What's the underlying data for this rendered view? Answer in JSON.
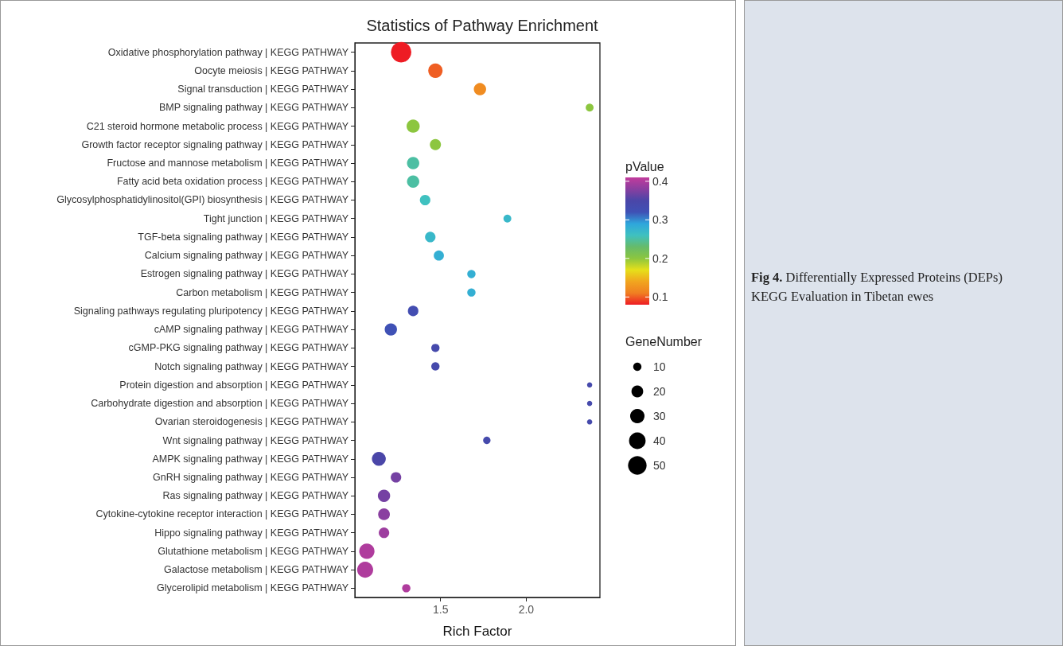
{
  "chart_data": {
    "type": "bubble",
    "title": "Statistics of Pathway Enrichment",
    "xlabel": "Rich Factor",
    "clabel": "pValue",
    "legend_title": "GeneNumber",
    "categories": [
      "Oxidative phosphorylation pathway | KEGG PATHWAY",
      "Oocyte meiosis | KEGG PATHWAY",
      "Signal transduction | KEGG PATHWAY",
      "BMP signaling pathway | KEGG PATHWAY",
      "C21 steroid hormone metabolic process | KEGG PATHWAY",
      "Growth factor receptor signaling pathway | KEGG PATHWAY",
      "Fructose and mannose metabolism | KEGG PATHWAY",
      "Fatty acid beta oxidation process | KEGG PATHWAY",
      "Glycosylphosphatidylinositol(GPI) biosynthesis | KEGG PATHWAY",
      "Tight junction | KEGG PATHWAY",
      "TGF-beta signaling pathway | KEGG PATHWAY",
      "Calcium signaling pathway | KEGG PATHWAY",
      "Estrogen signaling pathway | KEGG PATHWAY",
      "Carbon metabolism | KEGG PATHWAY",
      "Signaling pathways regulating pluripotency | KEGG PATHWAY",
      "cAMP signaling pathway | KEGG PATHWAY",
      "cGMP-PKG signaling pathway | KEGG PATHWAY",
      "Notch signaling pathway | KEGG PATHWAY",
      "Protein digestion and absorption | KEGG PATHWAY",
      "Carbohydrate digestion and absorption | KEGG PATHWAY",
      "Ovarian steroidogenesis | KEGG PATHWAY",
      "Wnt signaling pathway | KEGG PATHWAY",
      "AMPK signaling pathway | KEGG PATHWAY",
      "GnRH signaling pathway | KEGG PATHWAY",
      "Ras signaling pathway | KEGG PATHWAY",
      "Cytokine-cytokine receptor interaction | KEGG PATHWAY",
      "Hippo signaling pathway | KEGG PATHWAY",
      "Glutathione metabolism | KEGG PATHWAY",
      "Galactose metabolism | KEGG PATHWAY",
      "Glycerolipid metabolism | KEGG PATHWAY"
    ],
    "values": [
      1.27,
      1.47,
      1.73,
      2.37,
      1.34,
      1.47,
      1.34,
      1.34,
      1.41,
      1.89,
      1.44,
      1.49,
      1.68,
      1.68,
      1.34,
      1.21,
      1.47,
      1.47,
      2.37,
      2.37,
      2.37,
      1.77,
      1.14,
      1.24,
      1.17,
      1.17,
      1.17,
      1.07,
      1.06,
      1.3
    ],
    "sizes": [
      60,
      30,
      22,
      9,
      25,
      18,
      22,
      22,
      16,
      9,
      16,
      15,
      10,
      10,
      16,
      22,
      10,
      10,
      4,
      4,
      4,
      8,
      28,
      16,
      22,
      20,
      16,
      34,
      37,
      10
    ],
    "size_legend": [
      10,
      20,
      30,
      40,
      50
    ],
    "cvalues": [
      0.08,
      0.1,
      0.12,
      0.2,
      0.2,
      0.2,
      0.25,
      0.25,
      0.26,
      0.27,
      0.27,
      0.28,
      0.28,
      0.28,
      0.33,
      0.32,
      0.34,
      0.34,
      0.34,
      0.34,
      0.34,
      0.34,
      0.35,
      0.37,
      0.37,
      0.38,
      0.39,
      0.4,
      0.4,
      0.4
    ],
    "clim": [
      0.08,
      0.41
    ],
    "cticks": [
      0.1,
      0.2,
      0.3,
      0.4
    ],
    "orientation": "horizontal",
    "xlim": [
      1.0,
      2.43
    ],
    "xticks": [
      {
        "value": 1.5,
        "label": "1.5"
      },
      {
        "value": 2,
        "label": "2.0"
      }
    ],
    "grid": false,
    "annotations": [
      "Fig 4. Differentially Expressed Proteins (DEPs) KEGG Evaluation in Tibetan ewes"
    ]
  }
}
